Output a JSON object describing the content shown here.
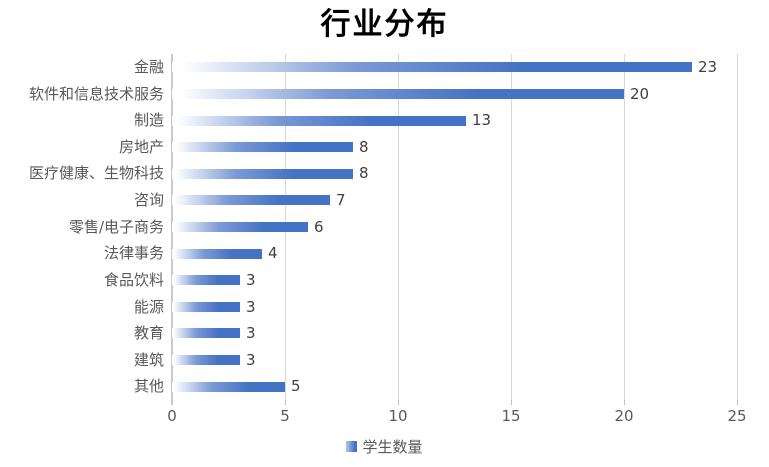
{
  "chart_data": {
    "type": "bar",
    "orientation": "horizontal",
    "title": "行业分布",
    "categories": [
      "金融",
      "软件和信息技术服务",
      "制造",
      "房地产",
      "医疗健康、生物科技",
      "咨询",
      "零售/电子商务",
      "法律事务",
      "食品饮料",
      "能源",
      "教育",
      "建筑",
      "其他"
    ],
    "values": [
      23,
      20,
      13,
      8,
      8,
      7,
      6,
      4,
      3,
      3,
      3,
      3,
      5
    ],
    "data_labels": [
      23,
      20,
      13,
      8,
      8,
      7,
      6,
      4,
      3,
      3,
      3,
      3,
      5
    ],
    "xlabel": "",
    "ylabel": "",
    "xlim": [
      0,
      25
    ],
    "x_ticks": [
      0,
      5,
      10,
      15,
      20,
      25
    ],
    "grid": true,
    "legend_position": "bottom"
  },
  "legend": {
    "label": "学生数量"
  },
  "colors": {
    "bar_main": "#4472c4",
    "bar_gradient_start": "#ffffff",
    "bar_gradient_mid": "#7b9ad6",
    "gridline": "#d9d9d9",
    "axis_line": "#c9c9c9",
    "tick": "#bfbfbf",
    "category_label": "#595959",
    "value_label": "#404040",
    "tick_label": "#595959",
    "title": "#000000"
  }
}
